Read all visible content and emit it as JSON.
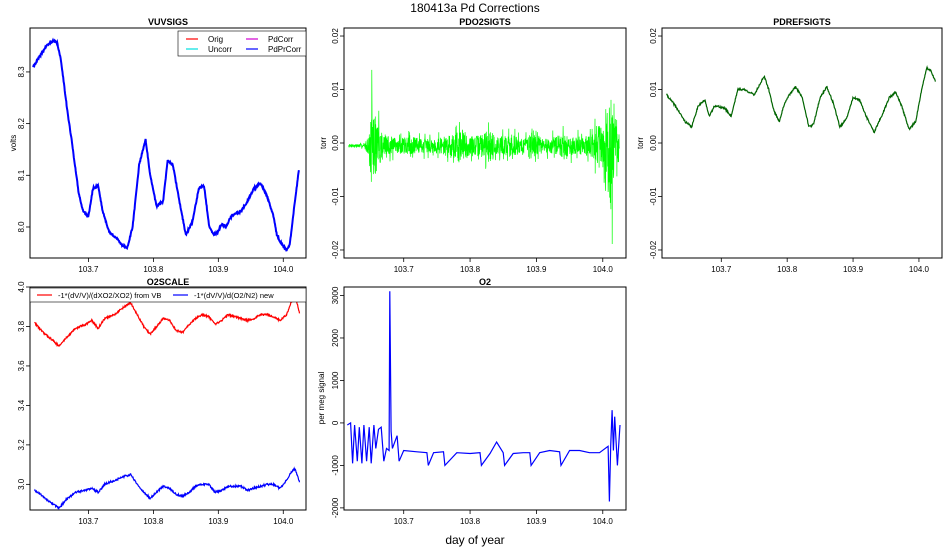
{
  "figure": {
    "title": "180413a   Pd Corrections",
    "xlabel": "day of year"
  },
  "chart_data": [
    {
      "id": "vuvsigs",
      "type": "line",
      "title": "VUVSIGS",
      "xlabel": "",
      "ylabel": "volts",
      "xlim": [
        103.61,
        104.035
      ],
      "ylim": [
        7.94,
        8.385
      ],
      "xticks": [
        103.7,
        103.8,
        103.9,
        104.0
      ],
      "xtick_labels": [
        "103.7",
        "103.8",
        "103.9",
        "104.0"
      ],
      "yticks": [
        8.0,
        8.1,
        8.2,
        8.3
      ],
      "ytick_labels": [
        "8.0",
        "8.1",
        "8.2",
        "8.3"
      ],
      "legend_position": "top-right",
      "legend_columns": 2,
      "colors": {
        "Orig": "#ff0000",
        "Uncorr": "#00e0e0",
        "PdCorr": "#d000d0",
        "PdPrCorr": "#0000ff"
      },
      "series": [
        {
          "name": "Orig",
          "color": "#ff0000",
          "x": [],
          "y": []
        },
        {
          "name": "PdCorr",
          "color": "#d000d0",
          "x": [],
          "y": []
        },
        {
          "name": "Uncorr",
          "color": "#00e0e0",
          "x": [],
          "y": []
        },
        {
          "name": "PdPrCorr",
          "color": "#0000ff",
          "x": [
            103.615,
            103.625,
            103.635,
            103.645,
            103.652,
            103.658,
            103.668,
            103.675,
            103.685,
            103.692,
            103.7,
            103.707,
            103.715,
            103.722,
            103.732,
            103.742,
            103.752,
            103.76,
            103.768,
            103.778,
            103.788,
            103.795,
            103.805,
            103.815,
            103.822,
            103.83,
            103.84,
            103.85,
            103.86,
            103.87,
            103.878,
            103.886,
            103.893,
            103.899,
            103.905,
            103.912,
            103.919,
            103.925,
            103.935,
            103.945,
            103.955,
            103.965,
            103.975,
            103.985,
            103.99,
            103.996,
            104.005,
            104.01,
            104.017,
            104.024
          ],
          "y": [
            8.31,
            8.33,
            8.35,
            8.36,
            8.356,
            8.32,
            8.22,
            8.16,
            8.065,
            8.03,
            8.02,
            8.075,
            8.08,
            8.03,
            7.99,
            7.98,
            7.965,
            7.96,
            8.0,
            8.12,
            8.17,
            8.1,
            8.04,
            8.05,
            8.13,
            8.12,
            8.05,
            7.985,
            8.01,
            8.075,
            8.08,
            8.0,
            7.985,
            7.99,
            8.005,
            8.0,
            8.02,
            8.025,
            8.03,
            8.05,
            8.075,
            8.085,
            8.06,
            8.02,
            7.985,
            7.97,
            7.955,
            7.965,
            8.04,
            8.11
          ]
        }
      ]
    },
    {
      "id": "pdo2sigts",
      "type": "line",
      "title": "PDO2SIGTS",
      "xlabel": "",
      "ylabel": "torr",
      "xlim": [
        103.61,
        104.035
      ],
      "ylim": [
        -0.0215,
        0.0215
      ],
      "xticks": [
        103.7,
        103.8,
        103.9,
        104.0
      ],
      "xtick_labels": [
        "103.7",
        "103.8",
        "103.9",
        "104.0"
      ],
      "yticks": [
        -0.02,
        -0.01,
        0.0,
        0.01,
        0.02
      ],
      "ytick_labels": [
        "-0.02",
        "-0.01",
        "0.00",
        "0.01",
        "0.02"
      ],
      "series": [
        {
          "name": "",
          "color": "#00ff00",
          "x": [
            103.617,
            103.63,
            103.64,
            103.648,
            103.652,
            103.66,
            103.67,
            103.69,
            103.71,
            103.73,
            103.75,
            103.77,
            103.785,
            103.79,
            103.8,
            103.82,
            103.83,
            103.84,
            103.86,
            103.88,
            103.89,
            103.9,
            103.92,
            103.94,
            103.96,
            103.98,
            104.0,
            104.005,
            104.01,
            104.012,
            104.02,
            104.025
          ],
          "amp": [
            0.0006,
            0.0006,
            0.0006,
            0.0035,
            0.015,
            0.008,
            0.004,
            0.0025,
            0.003,
            0.0025,
            0.0025,
            0.0035,
            0.005,
            0.006,
            0.003,
            0.004,
            0.006,
            0.003,
            0.004,
            0.0025,
            0.005,
            0.003,
            0.0025,
            0.004,
            0.003,
            0.0035,
            0.008,
            0.013,
            0.02,
            0.021,
            0.012,
            0.004
          ]
        }
      ]
    },
    {
      "id": "pdrefsigts",
      "type": "line",
      "title": "PDREFSIGTS",
      "xlabel": "",
      "ylabel": "torr",
      "xlim": [
        103.61,
        104.035
      ],
      "ylim": [
        -0.0215,
        0.0215
      ],
      "xticks": [
        103.7,
        103.8,
        103.9,
        104.0
      ],
      "xtick_labels": [
        "103.7",
        "103.8",
        "103.9",
        "104.0"
      ],
      "yticks": [
        -0.02,
        -0.01,
        0.0,
        0.01,
        0.02
      ],
      "ytick_labels": [
        "-0.02",
        "-0.01",
        "0.00",
        "0.01",
        "0.02"
      ],
      "series": [
        {
          "name": "",
          "color": "#006400",
          "x": [
            103.617,
            103.63,
            103.645,
            103.655,
            103.665,
            103.675,
            103.682,
            103.69,
            103.705,
            103.715,
            103.725,
            103.735,
            103.75,
            103.765,
            103.772,
            103.78,
            103.788,
            103.795,
            103.803,
            103.813,
            103.823,
            103.833,
            103.84,
            103.85,
            103.86,
            103.87,
            103.88,
            103.89,
            103.9,
            103.91,
            103.92,
            103.932,
            103.945,
            103.955,
            103.965,
            103.975,
            103.985,
            103.995,
            104.005,
            104.012,
            104.018,
            104.025
          ],
          "y": [
            0.009,
            0.007,
            0.004,
            0.003,
            0.007,
            0.008,
            0.005,
            0.007,
            0.0065,
            0.005,
            0.01,
            0.01,
            0.009,
            0.0125,
            0.01,
            0.006,
            0.004,
            0.007,
            0.009,
            0.0105,
            0.0085,
            0.003,
            0.0035,
            0.0085,
            0.0105,
            0.0075,
            0.003,
            0.0045,
            0.0085,
            0.008,
            0.005,
            0.002,
            0.0055,
            0.0085,
            0.0095,
            0.0065,
            0.0025,
            0.004,
            0.0105,
            0.014,
            0.0135,
            0.0115
          ]
        }
      ]
    },
    {
      "id": "o2scale",
      "type": "line",
      "title": "O2SCALE",
      "xlabel": "",
      "ylabel": "",
      "xlim": [
        103.61,
        104.035
      ],
      "ylim": [
        2.87,
        4.0
      ],
      "xticks": [
        103.7,
        103.8,
        103.9,
        104.0
      ],
      "xtick_labels": [
        "103.7",
        "103.8",
        "103.9",
        "104.0"
      ],
      "yticks": [
        3.0,
        3.2,
        3.4,
        3.6,
        3.8,
        4.0
      ],
      "ytick_labels": [
        "3.0",
        "3.2",
        "3.4",
        "3.6",
        "3.8",
        "4.0"
      ],
      "legend_position": "top",
      "legend": [
        "-1*(dV/V)/(dXO2/XO2) from VB",
        "-1*(dV/V)/d(O2/N2) new"
      ],
      "series": [
        {
          "name": "-1*(dV/V)/(dXO2/XO2) from VB",
          "color": "#ff0000",
          "x": [
            103.617,
            103.63,
            103.645,
            103.655,
            103.665,
            103.68,
            103.695,
            103.705,
            103.715,
            103.725,
            103.74,
            103.755,
            103.765,
            103.775,
            103.785,
            103.795,
            103.805,
            103.815,
            103.825,
            103.835,
            103.845,
            103.855,
            103.865,
            103.875,
            103.885,
            103.895,
            103.905,
            103.915,
            103.925,
            103.935,
            103.945,
            103.955,
            103.965,
            103.975,
            103.985,
            103.995,
            104.005,
            104.012,
            104.018,
            104.025
          ],
          "y": [
            3.82,
            3.77,
            3.73,
            3.7,
            3.74,
            3.79,
            3.81,
            3.83,
            3.79,
            3.84,
            3.86,
            3.9,
            3.92,
            3.86,
            3.8,
            3.76,
            3.8,
            3.84,
            3.83,
            3.78,
            3.77,
            3.81,
            3.84,
            3.86,
            3.85,
            3.81,
            3.83,
            3.86,
            3.85,
            3.84,
            3.83,
            3.84,
            3.86,
            3.86,
            3.85,
            3.83,
            3.86,
            3.92,
            3.96,
            3.87
          ]
        },
        {
          "name": "-1*(dV/V)/d(O2/N2) new",
          "color": "#0000ff",
          "x": [
            103.617,
            103.63,
            103.645,
            103.655,
            103.665,
            103.68,
            103.695,
            103.705,
            103.715,
            103.725,
            103.74,
            103.755,
            103.765,
            103.775,
            103.785,
            103.795,
            103.805,
            103.815,
            103.825,
            103.835,
            103.845,
            103.855,
            103.865,
            103.875,
            103.885,
            103.895,
            103.905,
            103.915,
            103.925,
            103.935,
            103.945,
            103.955,
            103.965,
            103.975,
            103.985,
            103.995,
            104.005,
            104.012,
            104.018,
            104.025
          ],
          "y": [
            2.97,
            2.94,
            2.9,
            2.88,
            2.92,
            2.96,
            2.97,
            2.98,
            2.96,
            3.0,
            3.02,
            3.04,
            3.05,
            3.0,
            2.96,
            2.93,
            2.96,
            2.99,
            2.98,
            2.95,
            2.94,
            2.96,
            2.99,
            3.0,
            3.0,
            2.96,
            2.97,
            2.99,
            2.99,
            2.99,
            2.97,
            2.98,
            2.99,
            3.0,
            3.0,
            2.98,
            3.02,
            3.06,
            3.08,
            3.01
          ]
        }
      ]
    },
    {
      "id": "o2",
      "type": "line",
      "title": "O2",
      "xlabel": "",
      "ylabel": "per meg signal",
      "xlim": [
        103.61,
        104.035
      ],
      "ylim": [
        -2050,
        3200
      ],
      "xticks": [
        103.7,
        103.8,
        103.9,
        104.0
      ],
      "xtick_labels": [
        "103.7",
        "103.8",
        "103.9",
        "104.0"
      ],
      "yticks": [
        -2000,
        -1000,
        0,
        1000,
        2000,
        3000
      ],
      "ytick_labels": [
        "-2000",
        "-1000",
        "0",
        "1000",
        "2000",
        "3000"
      ],
      "series": [
        {
          "name": "",
          "color": "#0000ff",
          "x": [
            103.615,
            103.62,
            103.623,
            103.626,
            103.63,
            103.633,
            103.637,
            103.64,
            103.644,
            103.648,
            103.651,
            103.655,
            103.658,
            103.662,
            103.666,
            103.67,
            103.674,
            103.678,
            103.679,
            103.681,
            103.683,
            103.69,
            103.693,
            103.7,
            103.72,
            103.735,
            103.737,
            103.745,
            103.76,
            103.762,
            103.78,
            103.8,
            103.815,
            103.817,
            103.83,
            103.84,
            103.85,
            103.852,
            103.865,
            103.88,
            103.89,
            103.892,
            103.905,
            103.92,
            103.935,
            103.937,
            103.95,
            103.965,
            103.98,
            103.995,
            104.008,
            104.01,
            104.012,
            104.014,
            104.016,
            104.018,
            104.022,
            104.026
          ],
          "y": [
            -50,
            0,
            -950,
            -50,
            -900,
            -100,
            -950,
            -50,
            -900,
            -100,
            -950,
            -50,
            -600,
            -150,
            -100,
            -900,
            -600,
            -650,
            3100,
            -200,
            -600,
            -300,
            -900,
            -650,
            -680,
            -700,
            -1000,
            -700,
            -680,
            -1000,
            -700,
            -720,
            -700,
            -1000,
            -720,
            -450,
            -700,
            -1000,
            -720,
            -700,
            -700,
            -1000,
            -700,
            -650,
            -680,
            -1000,
            -650,
            -650,
            -700,
            -700,
            -550,
            -1850,
            -550,
            300,
            -650,
            150,
            -1000,
            -50
          ]
        }
      ]
    }
  ]
}
